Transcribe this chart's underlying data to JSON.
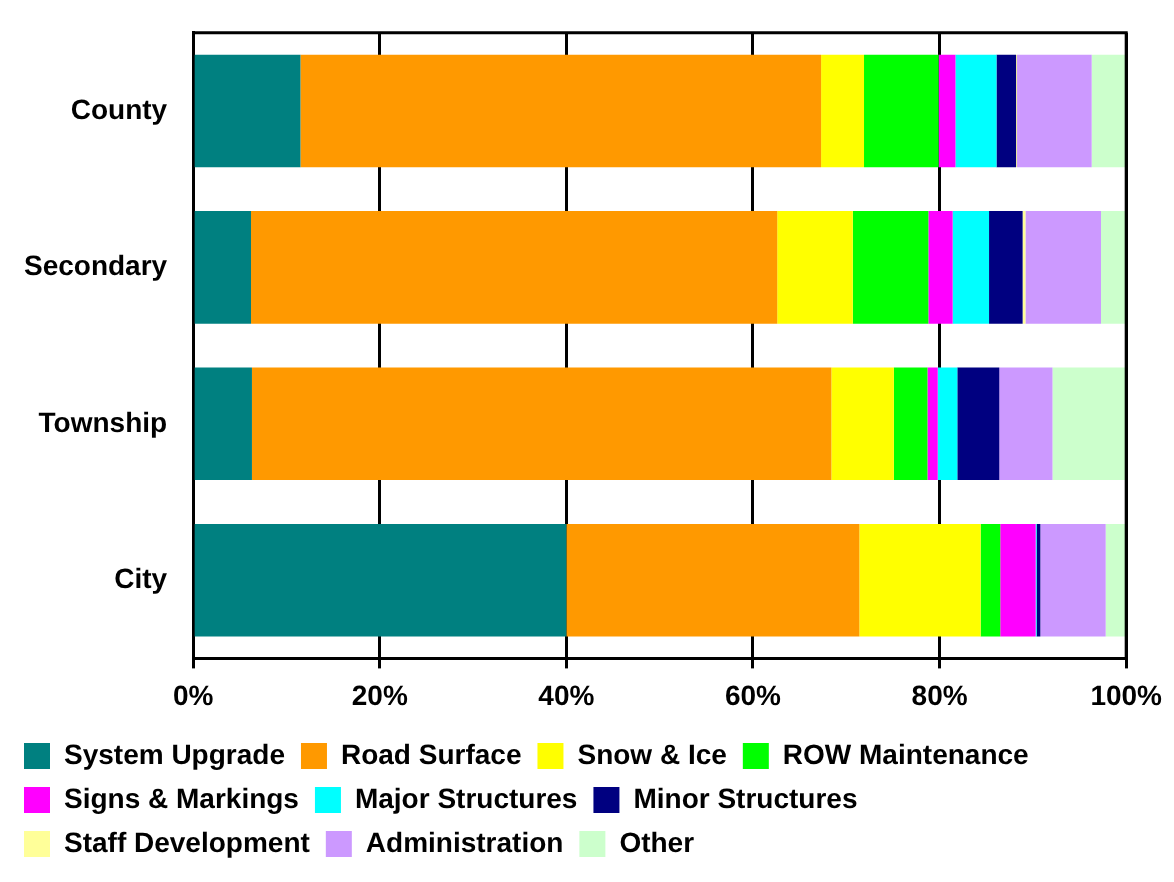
{
  "chart_data": {
    "type": "bar",
    "orientation": "horizontal",
    "stacked": true,
    "categories": [
      "County",
      "Secondary",
      "Township",
      "City"
    ],
    "series": [
      {
        "name": "System Upgrade",
        "color": "#008080",
        "values": [
          11.5,
          6.2,
          6.3,
          40.0
        ]
      },
      {
        "name": "Road Surface",
        "color": "#ff9900",
        "values": [
          55.8,
          56.4,
          62.1,
          31.4
        ]
      },
      {
        "name": "Snow & Ice",
        "color": "#ffff00",
        "values": [
          4.6,
          8.1,
          6.7,
          13.0
        ]
      },
      {
        "name": "ROW Maintenance",
        "color": "#00ff00",
        "values": [
          8.0,
          8.1,
          3.6,
          2.1
        ]
      },
      {
        "name": "Signs & Markings",
        "color": "#ff00ff",
        "values": [
          1.8,
          2.6,
          1.1,
          3.8
        ]
      },
      {
        "name": "Major Structures",
        "color": "#00ffff",
        "values": [
          4.4,
          3.9,
          2.1,
          0.1
        ]
      },
      {
        "name": "Minor Structures",
        "color": "#000080",
        "values": [
          2.1,
          3.6,
          4.5,
          0.4
        ]
      },
      {
        "name": "Staff Development",
        "color": "#ffff99",
        "values": [
          0.1,
          0.3,
          0,
          0
        ]
      },
      {
        "name": "Administration",
        "color": "#cc99ff",
        "values": [
          8.0,
          8.1,
          5.7,
          7.0
        ]
      },
      {
        "name": "Other",
        "color": "#ccffcc",
        "values": [
          3.7,
          2.7,
          7.9,
          2.2
        ]
      }
    ],
    "xlim": [
      0,
      100
    ],
    "xticks": [
      {
        "value": 0,
        "label": "0%"
      },
      {
        "value": 20,
        "label": "20%"
      },
      {
        "value": 40,
        "label": "40%"
      },
      {
        "value": 60,
        "label": "60%"
      },
      {
        "value": 80,
        "label": "80%"
      },
      {
        "value": 100,
        "label": "100%"
      }
    ],
    "grid": "x",
    "legend": "bottom"
  }
}
